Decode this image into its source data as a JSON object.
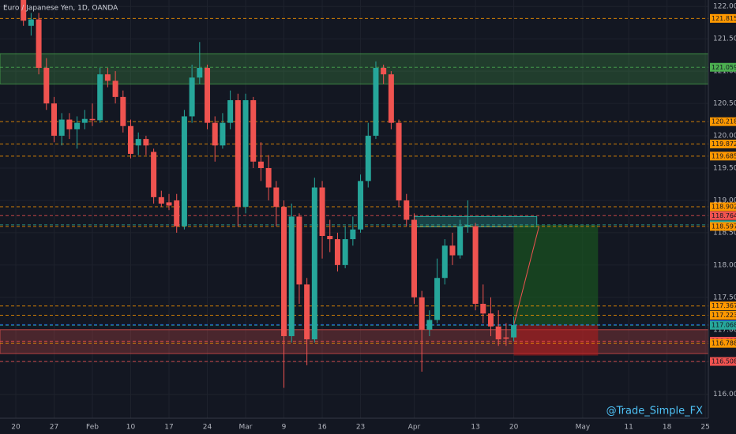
{
  "chart_data": {
    "type": "candlestick",
    "title": "Euro / Japanese Yen, 1D, OANDA",
    "watermark": "@Trade_Simple_FX",
    "up_color": "#26a69a",
    "down_color": "#ef5350",
    "grid": true,
    "x": [
      1,
      2,
      3,
      4,
      5,
      6,
      7,
      8,
      9,
      10,
      11,
      12,
      13,
      14,
      15,
      16,
      17,
      18,
      19,
      20,
      21,
      22,
      23,
      24,
      25,
      26,
      27,
      28,
      29,
      30,
      31,
      32,
      33,
      34,
      35,
      36,
      37,
      38,
      39,
      40,
      41,
      42,
      43,
      44,
      45,
      46,
      47,
      48,
      49,
      50,
      51,
      52,
      53,
      54,
      55,
      56,
      57,
      58,
      59,
      60,
      61,
      62,
      63,
      64,
      65
    ],
    "open": [
      122.1,
      121.7,
      121.8,
      121.05,
      120.5,
      120.0,
      120.25,
      120.1,
      120.2,
      120.26,
      120.24,
      120.95,
      120.85,
      120.6,
      120.15,
      119.85,
      119.95,
      119.75,
      119.05,
      118.97,
      119.0,
      118.6,
      120.3,
      120.9,
      121.05,
      120.2,
      119.85,
      120.2,
      120.55,
      118.9,
      120.55,
      119.6,
      119.5,
      119.2,
      118.9,
      116.9,
      118.75,
      117.7,
      116.85,
      119.2,
      118.45,
      118.4,
      118.0,
      118.4,
      118.55,
      119.3,
      120.0,
      121.05,
      120.95,
      120.2,
      119.0,
      118.7,
      117.5,
      117.0,
      117.15,
      117.8,
      118.3,
      118.15,
      118.6,
      118.6,
      117.4,
      117.25,
      117.05,
      116.88,
      116.88
    ],
    "high": [
      122.1,
      121.9,
      121.9,
      121.2,
      120.6,
      120.35,
      120.35,
      120.3,
      120.4,
      120.5,
      121.05,
      121.05,
      121.0,
      120.7,
      120.25,
      120.05,
      120.0,
      119.8,
      119.15,
      119.1,
      119.1,
      120.4,
      121.1,
      121.45,
      121.1,
      120.3,
      120.35,
      120.7,
      120.65,
      120.65,
      120.6,
      119.9,
      119.7,
      119.3,
      119.0,
      118.95,
      118.8,
      117.8,
      119.35,
      119.3,
      118.7,
      118.5,
      118.6,
      118.75,
      119.4,
      120.2,
      121.15,
      121.1,
      121.0,
      120.25,
      119.1,
      118.8,
      117.6,
      117.3,
      118.1,
      118.4,
      118.5,
      118.7,
      119.0,
      118.65,
      117.7,
      117.5,
      117.3,
      117.1,
      117.2
    ],
    "low": [
      121.7,
      121.55,
      120.95,
      120.4,
      119.9,
      119.85,
      119.95,
      119.8,
      120.1,
      120.15,
      120.2,
      120.75,
      120.5,
      120.05,
      119.65,
      119.7,
      119.7,
      118.95,
      118.9,
      118.85,
      118.5,
      118.55,
      120.2,
      120.8,
      120.1,
      119.6,
      119.8,
      120.1,
      118.6,
      118.8,
      119.5,
      119.3,
      119.0,
      118.6,
      116.1,
      116.8,
      117.4,
      116.45,
      116.8,
      118.1,
      118.2,
      117.9,
      117.95,
      118.3,
      118.5,
      119.2,
      119.95,
      120.8,
      120.1,
      118.9,
      118.6,
      117.4,
      116.35,
      116.9,
      117.1,
      117.7,
      118.0,
      118.1,
      118.5,
      117.3,
      117.1,
      116.9,
      116.75,
      116.75,
      116.82
    ],
    "close": [
      121.78,
      121.8,
      121.05,
      120.5,
      120.0,
      120.25,
      120.1,
      120.2,
      120.26,
      120.24,
      120.95,
      120.85,
      120.6,
      120.15,
      119.72,
      119.95,
      119.85,
      119.05,
      118.95,
      118.92,
      118.6,
      120.3,
      120.9,
      121.05,
      120.2,
      119.85,
      120.2,
      120.55,
      118.9,
      120.55,
      119.6,
      119.5,
      119.2,
      118.9,
      116.9,
      118.75,
      117.7,
      116.85,
      119.2,
      118.45,
      118.4,
      118.0,
      118.4,
      118.55,
      119.3,
      120.0,
      121.05,
      120.95,
      120.2,
      119.0,
      118.7,
      117.5,
      117.0,
      117.15,
      117.8,
      118.3,
      118.15,
      118.6,
      118.62,
      117.4,
      117.25,
      117.05,
      116.85,
      116.86,
      117.07
    ],
    "xlim": [
      -2.06,
      90.4
    ],
    "xticks": [
      {
        "value": 0,
        "label": "20"
      },
      {
        "value": 5,
        "label": "27"
      },
      {
        "value": 10,
        "label": "Feb"
      },
      {
        "value": 15,
        "label": "10"
      },
      {
        "value": 20,
        "label": "17"
      },
      {
        "value": 25,
        "label": "24"
      },
      {
        "value": 30,
        "label": "Mar"
      },
      {
        "value": 35,
        "label": "9"
      },
      {
        "value": 40,
        "label": "16"
      },
      {
        "value": 45,
        "label": "23"
      },
      {
        "value": 52,
        "label": "Apr"
      },
      {
        "value": 60,
        "label": "13"
      },
      {
        "value": 65,
        "label": "20"
      },
      {
        "value": 74,
        "label": "May"
      },
      {
        "value": 80,
        "label": "11"
      },
      {
        "value": 85,
        "label": "18"
      },
      {
        "value": 90,
        "label": "25"
      }
    ],
    "ylim": [
      115.63,
      122.1
    ],
    "yticks": [
      {
        "value": 116,
        "label": "116.000"
      },
      {
        "value": 116.5,
        "label": "116.500"
      },
      {
        "value": 117,
        "label": "117.000"
      },
      {
        "value": 117.5,
        "label": "117.500"
      },
      {
        "value": 118,
        "label": "118.000"
      },
      {
        "value": 118.5,
        "label": "118.500"
      },
      {
        "value": 119,
        "label": "119.000"
      },
      {
        "value": 119.5,
        "label": "119.500"
      },
      {
        "value": 120,
        "label": "120.000"
      },
      {
        "value": 120.5,
        "label": "120.500"
      },
      {
        "value": 121,
        "label": "121.000"
      },
      {
        "value": 121.5,
        "label": "121.500"
      },
      {
        "value": 122,
        "label": "122.000"
      }
    ],
    "zones": [
      {
        "from": 121.27,
        "to": 120.8,
        "color": "#4caf50"
      },
      {
        "from": 117.0,
        "to": 116.63,
        "color": "#ef5350"
      }
    ],
    "box": {
      "x": [
        52,
        68
      ],
      "from": 118.75,
      "to": 118.59,
      "color": "#26a69a"
    },
    "position": {
      "x": [
        65,
        76
      ],
      "entry": 117.07,
      "target": 118.62,
      "stop": 116.6,
      "arrow_to": [
        68.3,
        118.6
      ]
    },
    "levels": [
      {
        "value": 121.815,
        "color": "#ff9800"
      },
      {
        "value": 121.059,
        "color": "#4caf50"
      },
      {
        "value": 120.218,
        "color": "#ff9800"
      },
      {
        "value": 119.872,
        "color": "#ff9800"
      },
      {
        "value": 119.685,
        "color": "#ff9800"
      },
      {
        "value": 118.902,
        "color": "#ff9800"
      },
      {
        "value": 118.764,
        "color": "#ef5350"
      },
      {
        "value": 118.623,
        "color": "#26a69a"
      },
      {
        "value": 118.597,
        "color": "#ff9800"
      },
      {
        "value": 117.367,
        "color": "#ff9800"
      },
      {
        "value": 117.223,
        "color": "#ff9800"
      },
      {
        "value": 117.078,
        "color": "#2962ff"
      },
      {
        "value": 117.068,
        "color": "#26a69a"
      },
      {
        "value": 116.821,
        "color": "#ef5350"
      },
      {
        "value": 116.788,
        "color": "#ff9800"
      },
      {
        "value": 116.508,
        "color": "#ef5350"
      }
    ]
  }
}
